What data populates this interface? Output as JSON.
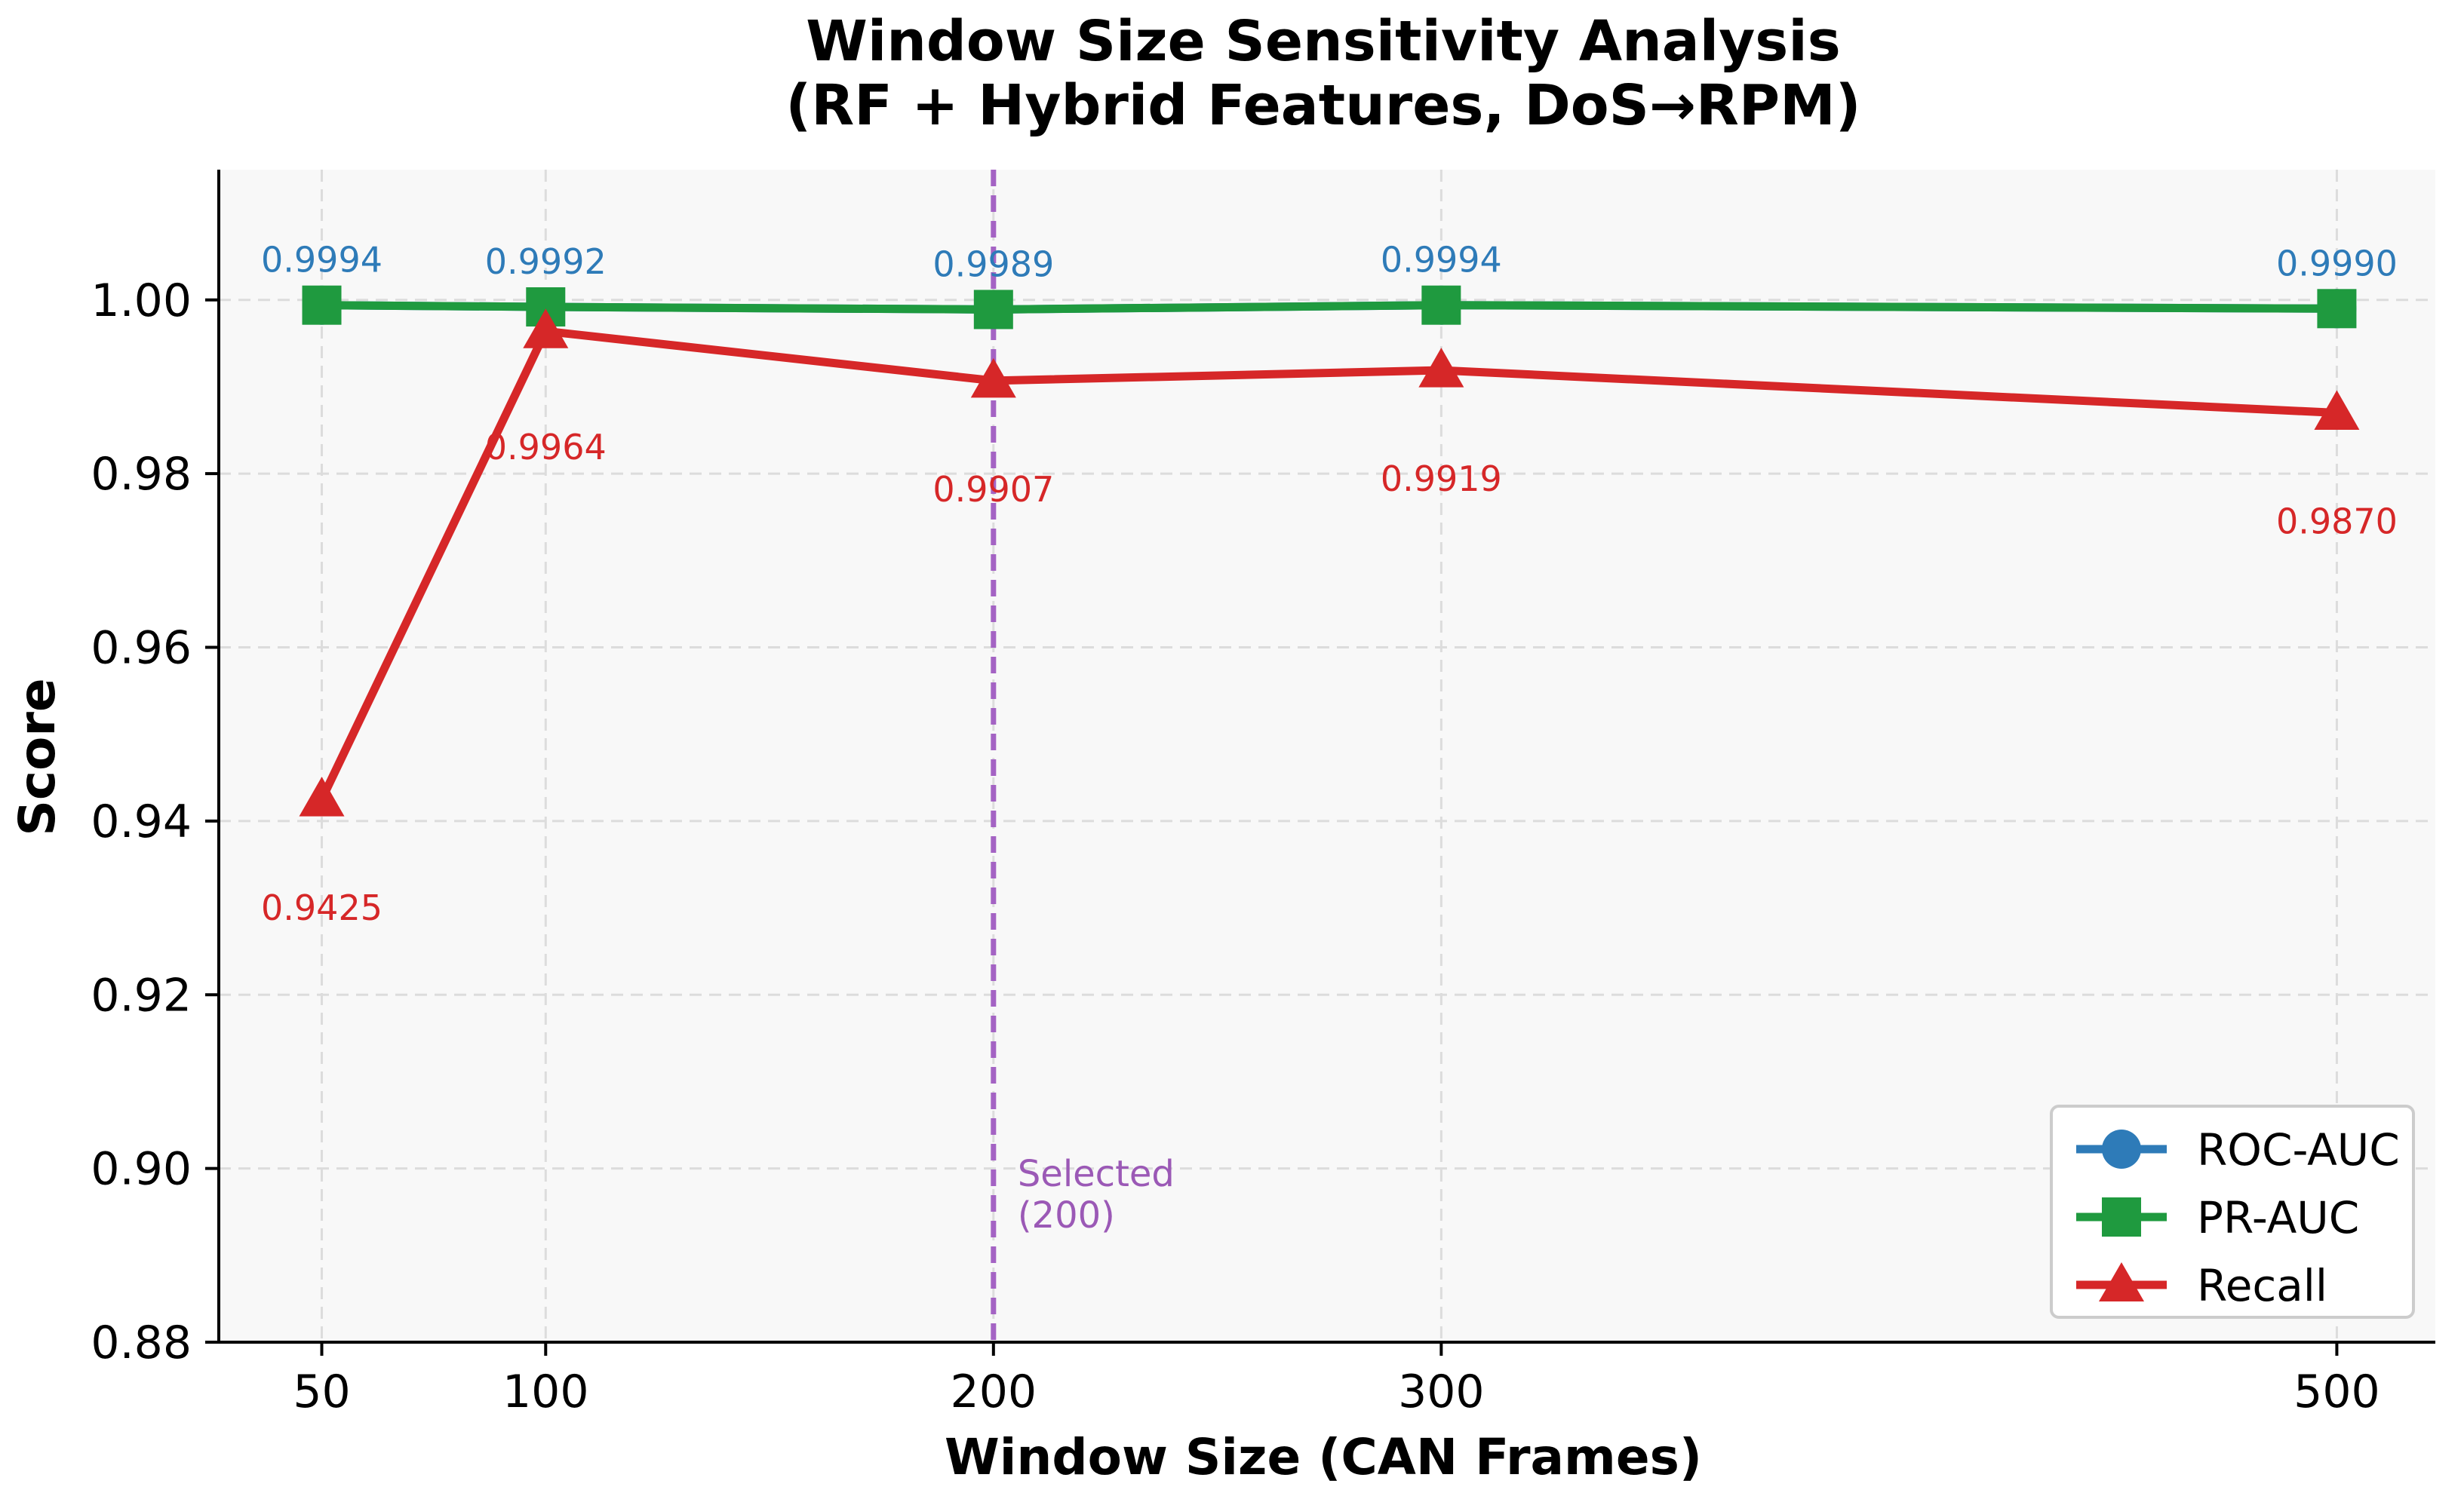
{
  "chart_data": {
    "type": "line",
    "title": "Window Size Sensitivity Analysis",
    "subtitle": "(RF + Hybrid Features, DoS→RPM)",
    "xlabel": "Window Size (CAN Frames)",
    "ylabel": "Score",
    "x": [
      50,
      100,
      200,
      300,
      500
    ],
    "x_tick_labels": [
      "50",
      "100",
      "200",
      "300",
      "500"
    ],
    "xlim": [
      27,
      522
    ],
    "ylim": [
      0.88,
      1.015
    ],
    "y_ticks": [
      0.88,
      0.9,
      0.92,
      0.94,
      0.96,
      0.98,
      1.0
    ],
    "y_tick_labels": [
      "0.88",
      "0.90",
      "0.92",
      "0.94",
      "0.96",
      "0.98",
      "1.00"
    ],
    "grid": true,
    "legend_position": "bottom-right",
    "series": [
      {
        "name": "ROC-AUC",
        "color": "#2e7bb8",
        "marker": "circle",
        "values": [
          0.9994,
          0.9992,
          0.9989,
          0.9994,
          0.999
        ],
        "value_labels": [
          "0.9994",
          "0.9992",
          "0.9989",
          "0.9994",
          "0.9990"
        ]
      },
      {
        "name": "PR-AUC",
        "color": "#1f9a3f",
        "marker": "square",
        "values": [
          0.9994,
          0.9992,
          0.9989,
          0.9994,
          0.999
        ]
      },
      {
        "name": "Recall",
        "color": "#d62728",
        "marker": "triangle",
        "values": [
          0.9425,
          0.9964,
          0.9907,
          0.9919,
          0.987
        ],
        "value_labels": [
          "0.9425",
          "0.9964",
          "0.9907",
          "0.9919",
          "0.9870"
        ]
      }
    ],
    "annotation": {
      "x": 200,
      "line_color": "#a463c4",
      "text_line1": "Selected",
      "text_line2": "(200)"
    }
  }
}
